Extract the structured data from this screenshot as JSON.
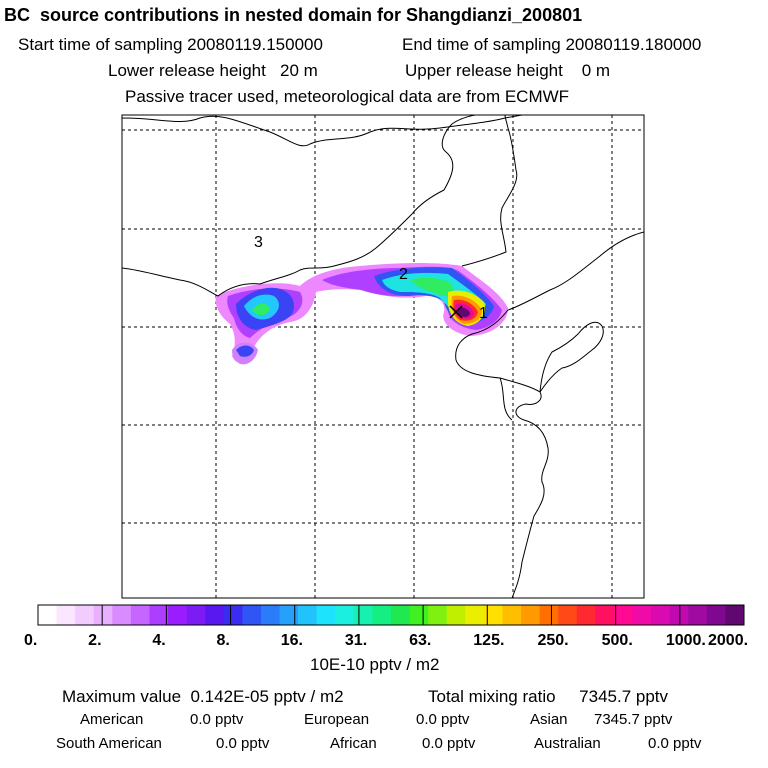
{
  "header": {
    "title": "BC  source contributions in nested domain for Shangdianzi_200801",
    "start_label": "Start time of sampling 20080119.150000",
    "end_label": "End time of sampling 20080119.180000",
    "lower_label": "Lower release height   20 m",
    "upper_label": "Upper release height    0 m",
    "tracer_note": "Passive tracer used, meteorological data are from ECMWF"
  },
  "map": {
    "region_labels": [
      "3",
      "2",
      "1"
    ],
    "colors": {
      "frame": "#000000",
      "coast": "#000000",
      "grid": "#000000"
    }
  },
  "colorbar": {
    "tick_labels": [
      "0.",
      "2.",
      "4.",
      "8.",
      "16.",
      "31.",
      "63.",
      "125.",
      "250.",
      "500.",
      "1000.",
      "2000."
    ],
    "unit": "10E-10 pptv / m2",
    "colors": [
      "#ffffff",
      "#fbe6ff",
      "#f2ccff",
      "#e8b0ff",
      "#d98cff",
      "#c466ff",
      "#ad3dff",
      "#9b1cff",
      "#7d1bf5",
      "#5a18f0",
      "#3a2cf0",
      "#2f55f5",
      "#2a7cf8",
      "#26a0fa",
      "#22c3fc",
      "#1ee3fd",
      "#1bf0e0",
      "#18f0b0",
      "#15ee80",
      "#20e850",
      "#40f020",
      "#80f010",
      "#c0f000",
      "#ecee00",
      "#ffe000",
      "#ffbe00",
      "#ff9a00",
      "#ff7000",
      "#ff4a18",
      "#ff2a30",
      "#ff1060",
      "#ff0a90",
      "#f00aa8",
      "#d80ab0",
      "#c00ab0",
      "#a00aa0",
      "#800890",
      "#600870"
    ],
    "bin_boundaries": [
      "0.",
      "2.",
      "4.",
      "8.",
      "16.",
      "31.",
      "63.",
      "125.",
      "250.",
      "500.",
      "1000.",
      "2000."
    ]
  },
  "stats": {
    "max_label": "Maximum value  0.142E-05 pptv / m2",
    "total_label": "Total mixing ratio     7345.7 pptv",
    "regions": [
      {
        "name": "American",
        "value": "0.0 pptv"
      },
      {
        "name": "European",
        "value": "0.0 pptv"
      },
      {
        "name": "Asian",
        "value": "7345.7 pptv"
      },
      {
        "name": "South American",
        "value": "0.0 pptv"
      },
      {
        "name": "African",
        "value": "0.0 pptv"
      },
      {
        "name": "Australian",
        "value": "0.0 pptv"
      }
    ]
  }
}
